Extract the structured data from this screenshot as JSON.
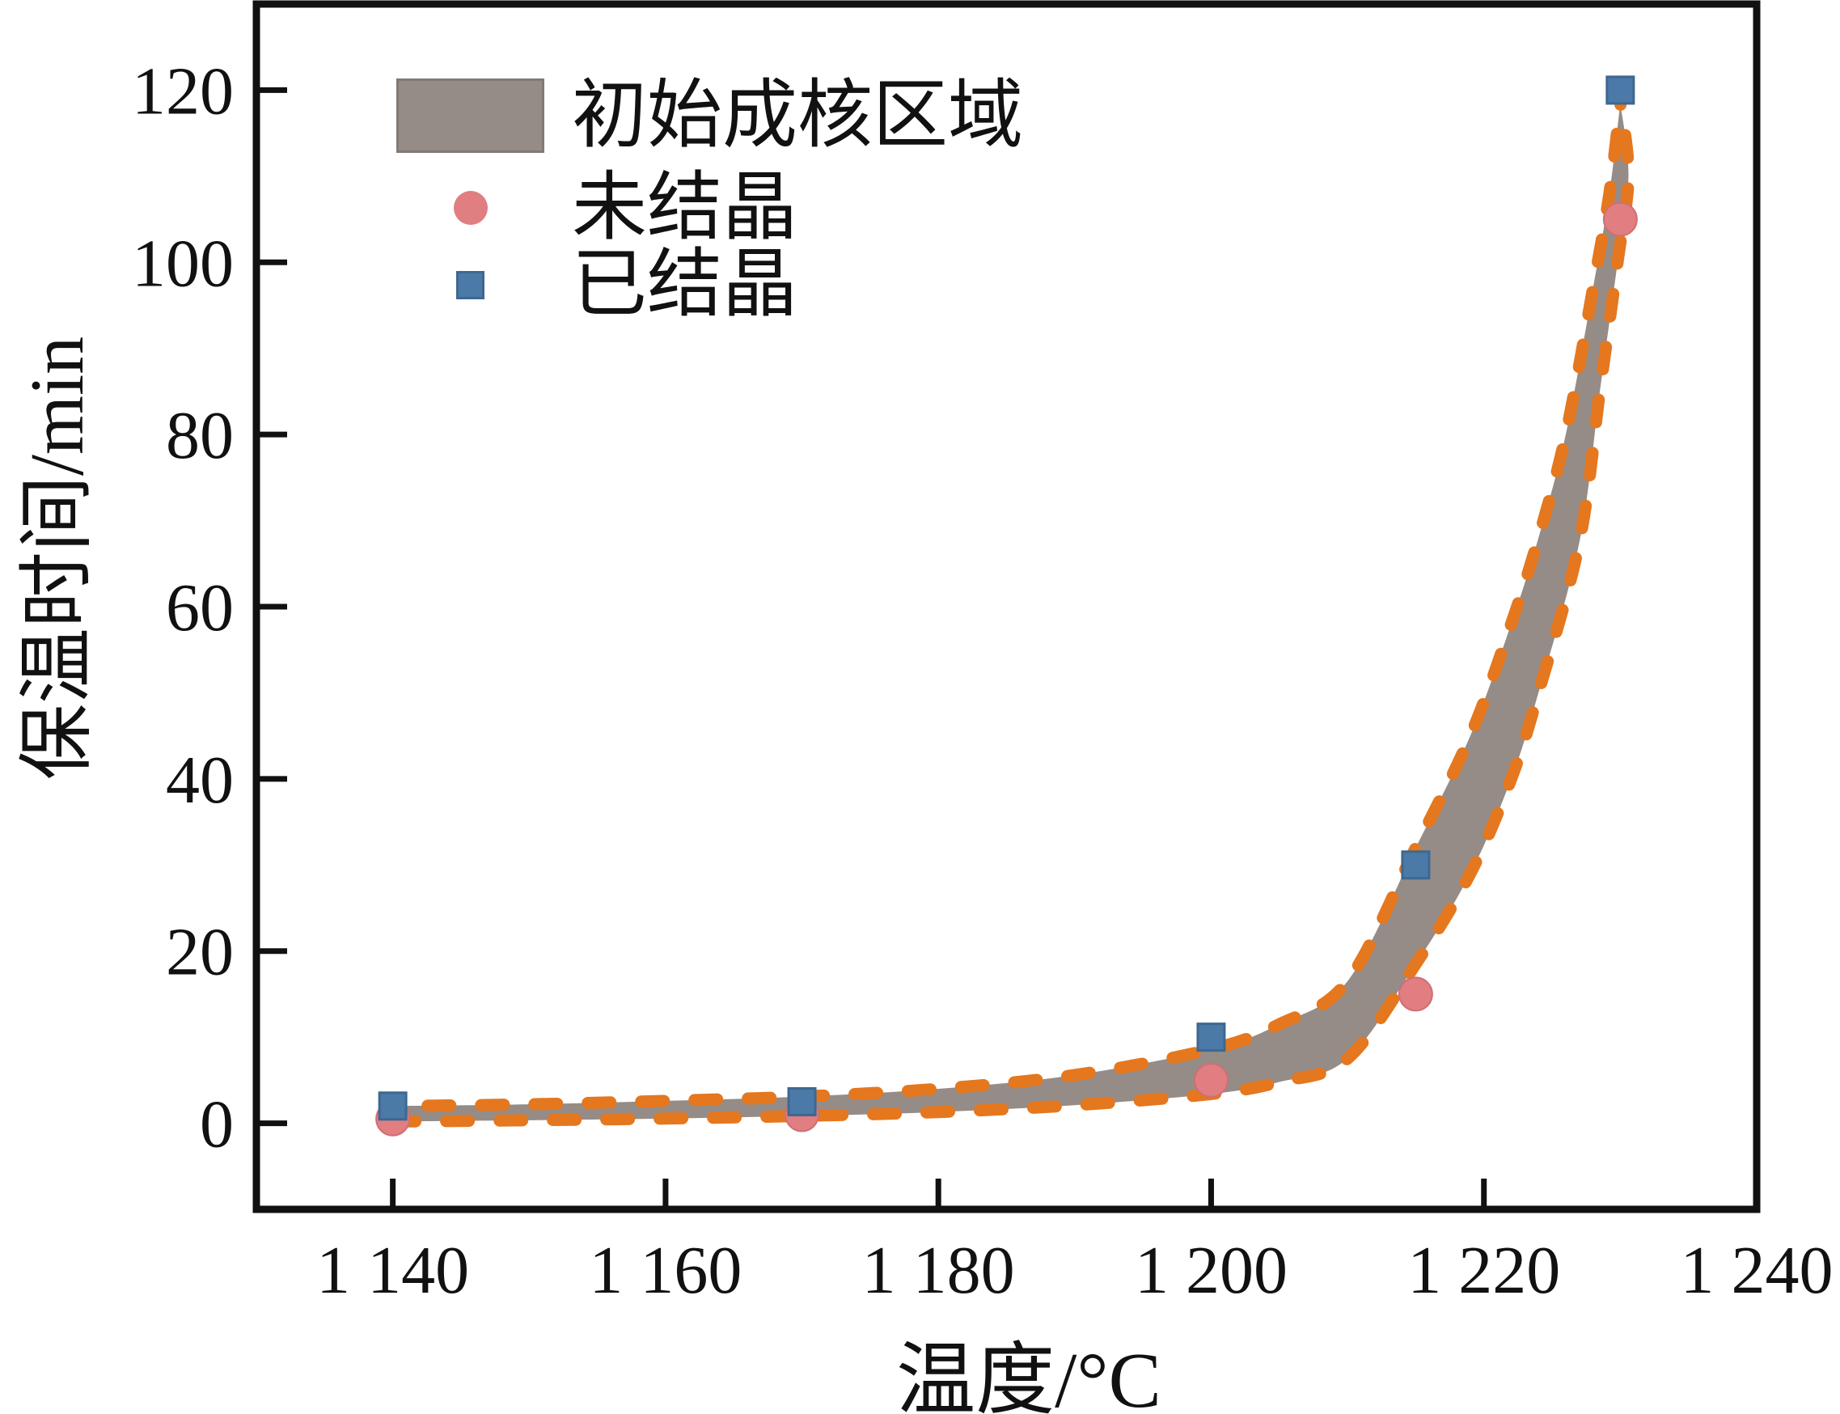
{
  "chart_data": {
    "type": "scatter",
    "title": "",
    "xlabel": "温度/°C",
    "ylabel": "保温时间/min",
    "xlim": [
      1130,
      1240
    ],
    "ylim": [
      -10,
      130
    ],
    "grid": false,
    "x_ticks": [
      1140,
      1160,
      1180,
      1200,
      1220,
      1240
    ],
    "x_tick_labels": [
      "1 140",
      "1 160",
      "1 180",
      "1 200",
      "1 220",
      "1 240"
    ],
    "y_ticks": [
      0,
      20,
      40,
      60,
      80,
      100,
      120
    ],
    "y_tick_labels": [
      "0",
      "20",
      "40",
      "60",
      "80",
      "100",
      "120"
    ],
    "legend": {
      "position": "upper-left-inside",
      "entries": [
        {
          "label": "初始成核区域",
          "marker": "band-swatch"
        },
        {
          "label": "未结晶",
          "marker": "circle"
        },
        {
          "label": "已结晶",
          "marker": "square"
        }
      ]
    },
    "series": [
      {
        "name": "未结晶",
        "marker": "circle",
        "color": "#E07E82",
        "points": [
          [
            1140,
            0.5
          ],
          [
            1170,
            1
          ],
          [
            1200,
            5
          ],
          [
            1215,
            15
          ],
          [
            1230,
            105
          ]
        ]
      },
      {
        "name": "已结晶",
        "marker": "square",
        "color": "#4B79A8",
        "points": [
          [
            1140,
            2
          ],
          [
            1170,
            2.5
          ],
          [
            1200,
            10
          ],
          [
            1215,
            30
          ],
          [
            1230,
            120
          ]
        ]
      }
    ],
    "band": {
      "name": "初始成核区域",
      "fill_color": "#958C87",
      "edge_color": "#E5771E",
      "edge_style": "dashed",
      "upper": [
        [
          1140,
          2.0
        ],
        [
          1150,
          2.2
        ],
        [
          1160,
          2.6
        ],
        [
          1170,
          3.1
        ],
        [
          1180,
          4.0
        ],
        [
          1190,
          5.6
        ],
        [
          1200,
          8.6
        ],
        [
          1205,
          11.5
        ],
        [
          1210,
          16.5
        ],
        [
          1215,
          32
        ],
        [
          1219,
          45
        ],
        [
          1222,
          58
        ],
        [
          1224,
          68
        ],
        [
          1226,
          80
        ],
        [
          1228,
          97
        ],
        [
          1229.2,
          108
        ],
        [
          1230,
          118.5
        ]
      ],
      "lower": [
        [
          1140,
          0.2
        ],
        [
          1150,
          0.35
        ],
        [
          1160,
          0.55
        ],
        [
          1170,
          0.85
        ],
        [
          1180,
          1.3
        ],
        [
          1190,
          2.1
        ],
        [
          1200,
          3.4
        ],
        [
          1205,
          4.8
        ],
        [
          1210,
          7.5
        ],
        [
          1215,
          18.5
        ],
        [
          1219,
          29
        ],
        [
          1222,
          40
        ],
        [
          1224,
          50
        ],
        [
          1227,
          67.5
        ],
        [
          1228.5,
          85
        ],
        [
          1229.8,
          100
        ],
        [
          1230.6,
          110
        ],
        [
          1230,
          118.5
        ]
      ]
    },
    "colors": {
      "frame": "#111111",
      "band_fill": "#958C87",
      "band_edge": "#E5771E",
      "uncrystallized": "#E07E82",
      "crystallized": "#4B79A8",
      "background": "#ffffff"
    }
  }
}
